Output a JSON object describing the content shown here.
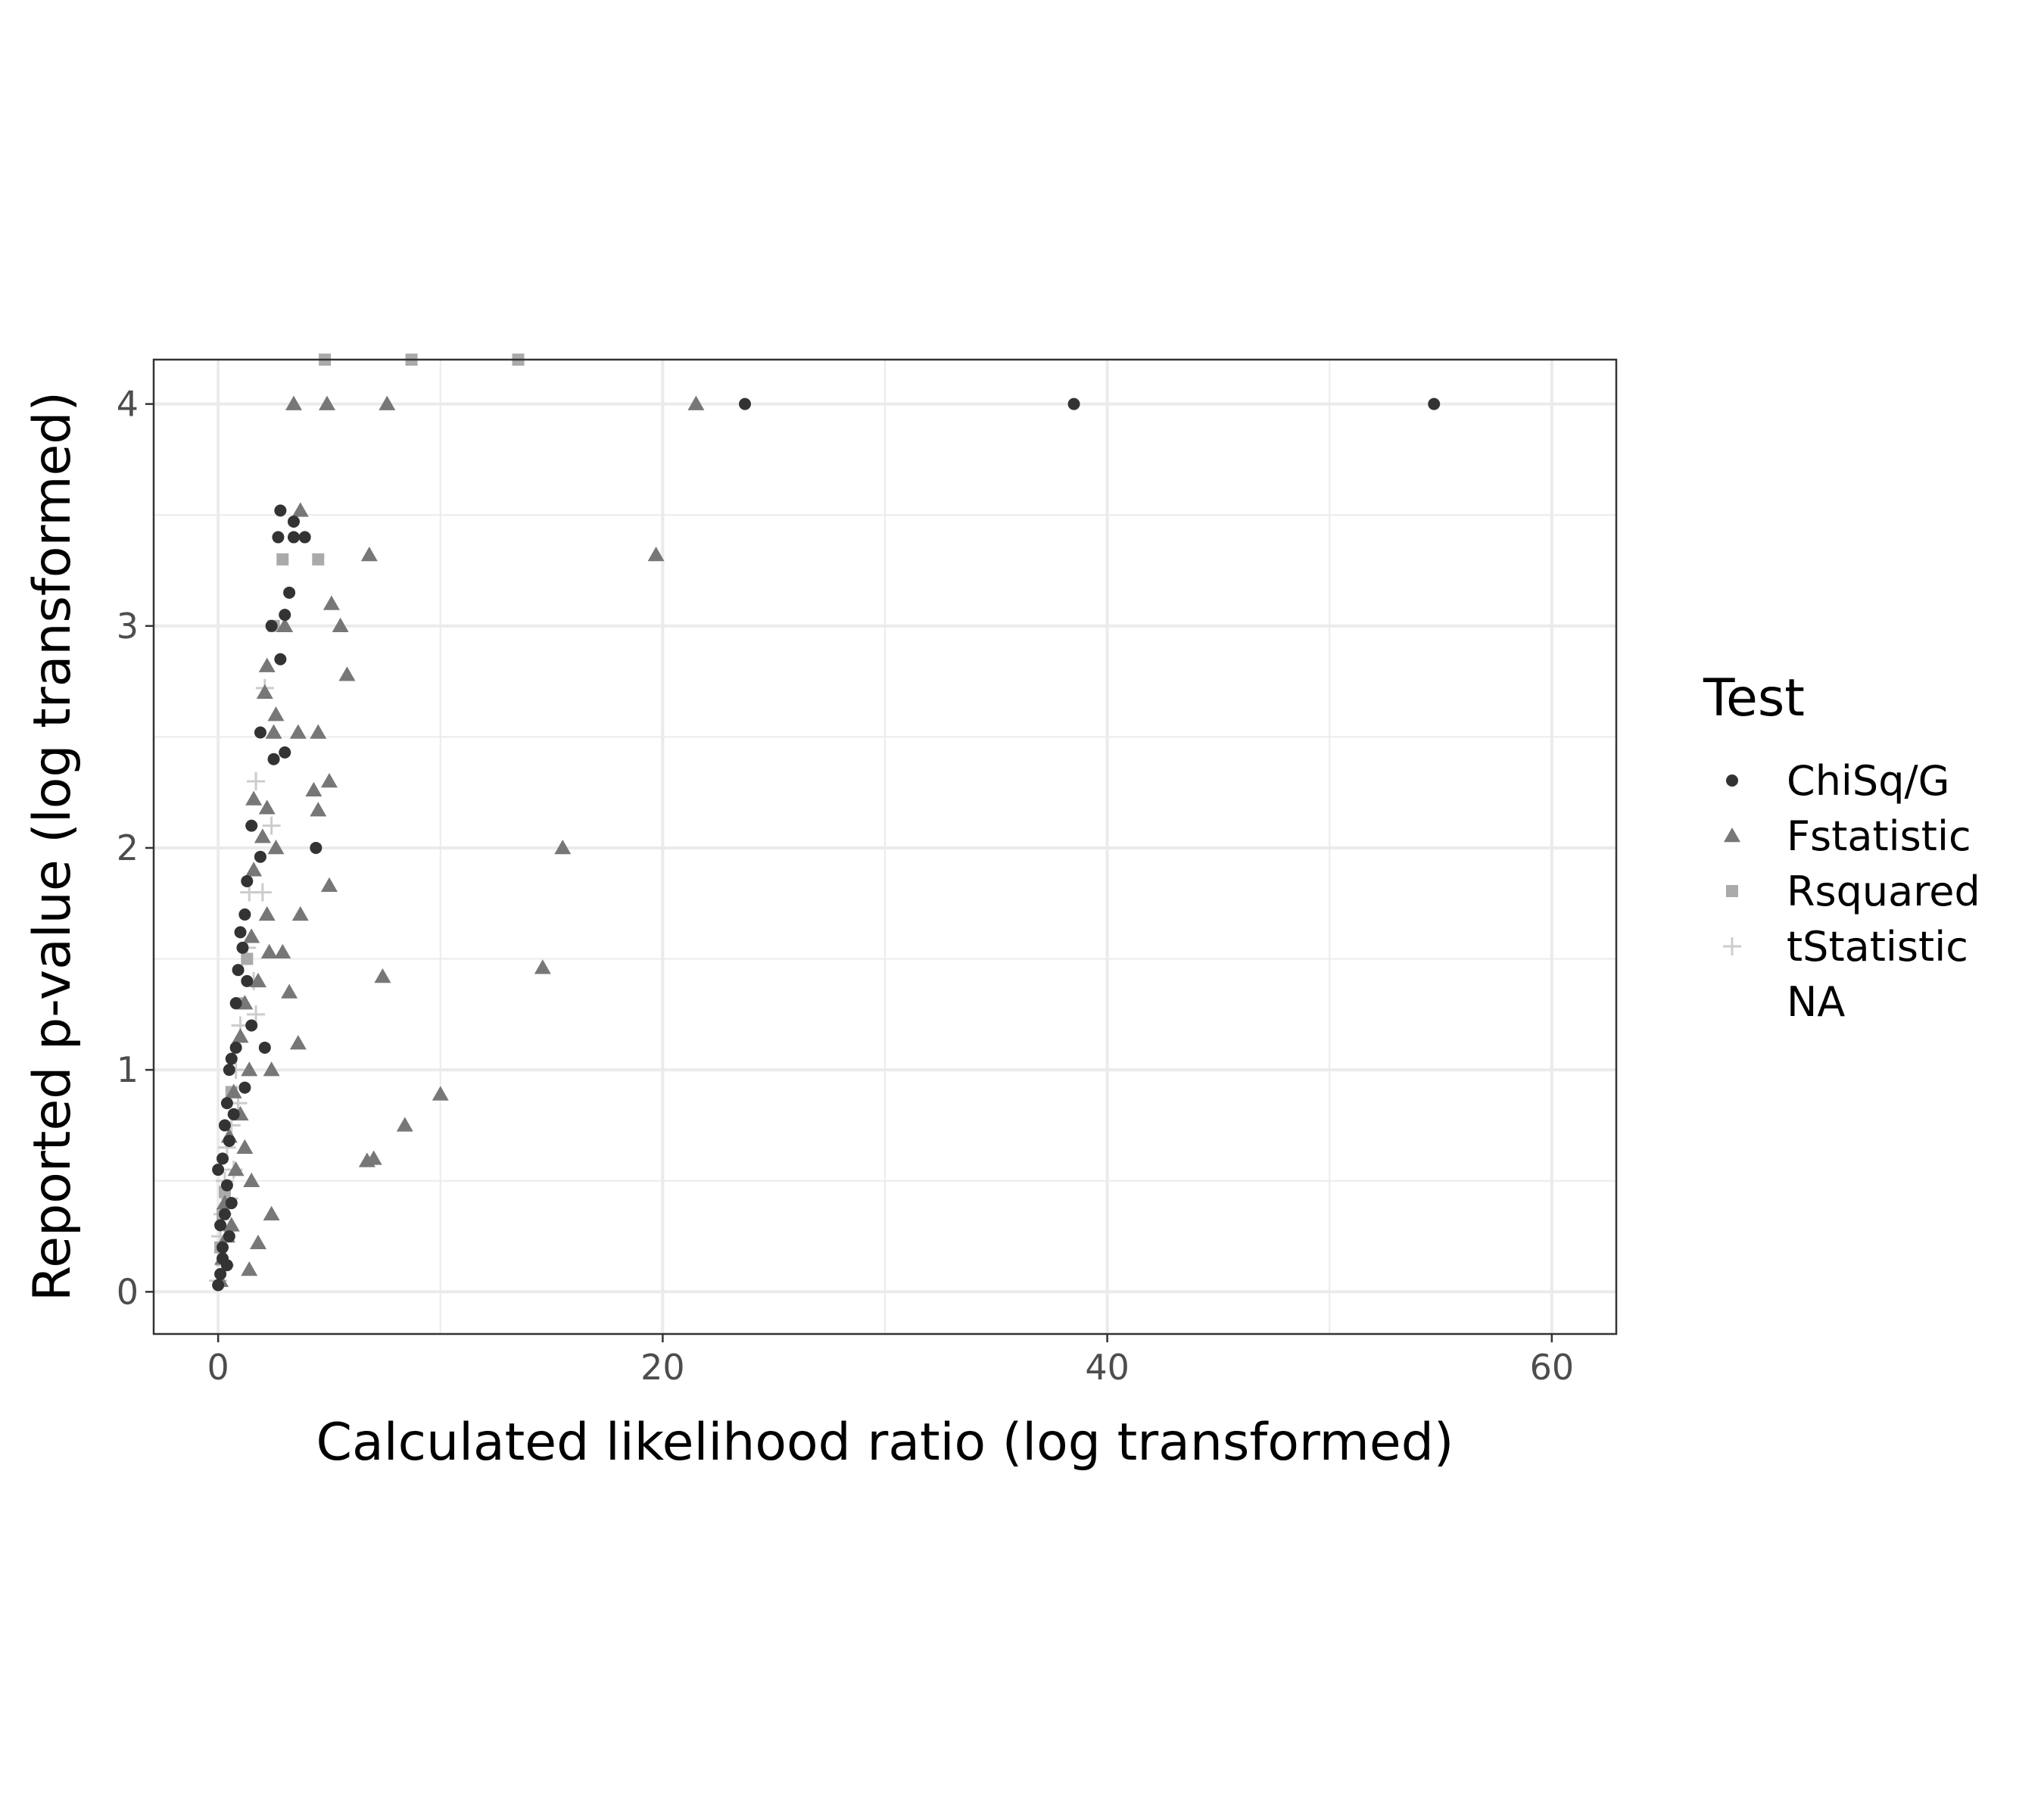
{
  "chart_data": {
    "type": "scatter",
    "xlabel": "Calculated likelihood ratio (log transformed)",
    "ylabel": "Reported p-value (log transformed)",
    "xlim": [
      -2.9,
      62.9
    ],
    "ylim": [
      -0.19,
      4.2
    ],
    "x_ticks": [
      0,
      20,
      40,
      60
    ],
    "y_ticks": [
      0,
      1,
      2,
      3,
      4
    ],
    "grid": true,
    "legend": {
      "title": "Test",
      "position": "right",
      "entries": [
        {
          "label": "ChiSq/G",
          "shape": "circle",
          "color": "#333333"
        },
        {
          "label": "Fstatistic",
          "shape": "triangle",
          "color": "#777777"
        },
        {
          "label": "Rsquared",
          "shape": "square",
          "color": "#aaaaaa"
        },
        {
          "label": "tStatistic",
          "shape": "plus",
          "color": "#cccccc"
        },
        {
          "label": "NA",
          "shape": "none",
          "color": "#ffffff"
        }
      ]
    },
    "series": [
      {
        "name": "ChiSq/G",
        "shape": "circle",
        "color": "#333333",
        "points": [
          [
            23.7,
            4.0
          ],
          [
            38.5,
            4.0
          ],
          [
            54.7,
            4.0
          ],
          [
            2.8,
            3.52
          ],
          [
            2.7,
            3.4
          ],
          [
            3.4,
            3.4
          ],
          [
            3.9,
            3.4
          ],
          [
            3.4,
            3.47
          ],
          [
            3.2,
            3.15
          ],
          [
            3.0,
            3.05
          ],
          [
            2.4,
            3.0
          ],
          [
            2.8,
            2.85
          ],
          [
            1.9,
            2.52
          ],
          [
            3.0,
            2.43
          ],
          [
            2.5,
            2.4
          ],
          [
            4.4,
            2.0
          ],
          [
            1.9,
            1.96
          ],
          [
            1.5,
            2.1
          ],
          [
            1.3,
            1.85
          ],
          [
            1.2,
            1.7
          ],
          [
            1.0,
            1.62
          ],
          [
            1.1,
            1.55
          ],
          [
            0.9,
            1.45
          ],
          [
            1.3,
            1.4
          ],
          [
            1.5,
            1.2
          ],
          [
            0.8,
            1.3
          ],
          [
            2.1,
            1.1
          ],
          [
            1.2,
            0.92
          ],
          [
            0.6,
            1.05
          ],
          [
            0.8,
            1.1
          ],
          [
            0.5,
            1.0
          ],
          [
            0.4,
            0.85
          ],
          [
            0.7,
            0.8
          ],
          [
            0.3,
            0.75
          ],
          [
            0.5,
            0.68
          ],
          [
            0.2,
            0.6
          ],
          [
            0.0,
            0.55
          ],
          [
            0.4,
            0.48
          ],
          [
            0.6,
            0.4
          ],
          [
            0.3,
            0.35
          ],
          [
            0.1,
            0.3
          ],
          [
            0.5,
            0.25
          ],
          [
            0.2,
            0.2
          ],
          [
            0.4,
            0.12
          ],
          [
            0.1,
            0.08
          ],
          [
            0.0,
            0.03
          ],
          [
            0.2,
            0.15
          ]
        ]
      },
      {
        "name": "Fstatistic",
        "shape": "triangle",
        "color": "#777777",
        "points": [
          [
            3.4,
            4.0
          ],
          [
            4.9,
            4.0
          ],
          [
            7.6,
            4.0
          ],
          [
            21.5,
            4.0
          ],
          [
            3.7,
            3.52
          ],
          [
            6.8,
            3.32
          ],
          [
            19.7,
            3.32
          ],
          [
            5.1,
            3.1
          ],
          [
            5.5,
            3.0
          ],
          [
            3.0,
            3.0
          ],
          [
            5.8,
            2.78
          ],
          [
            2.2,
            2.82
          ],
          [
            2.1,
            2.7
          ],
          [
            2.6,
            2.6
          ],
          [
            3.6,
            2.52
          ],
          [
            4.5,
            2.52
          ],
          [
            2.5,
            2.52
          ],
          [
            5.0,
            2.3
          ],
          [
            4.3,
            2.26
          ],
          [
            4.5,
            2.17
          ],
          [
            2.2,
            2.18
          ],
          [
            1.6,
            2.22
          ],
          [
            2.0,
            2.05
          ],
          [
            2.6,
            2.0
          ],
          [
            15.5,
            2.0
          ],
          [
            1.6,
            1.9
          ],
          [
            5.0,
            1.83
          ],
          [
            2.2,
            1.7
          ],
          [
            3.7,
            1.7
          ],
          [
            2.3,
            1.53
          ],
          [
            2.9,
            1.53
          ],
          [
            1.5,
            1.6
          ],
          [
            14.6,
            1.46
          ],
          [
            3.2,
            1.35
          ],
          [
            7.4,
            1.42
          ],
          [
            1.8,
            1.4
          ],
          [
            1.2,
            1.3
          ],
          [
            3.6,
            1.12
          ],
          [
            2.4,
            1.0
          ],
          [
            1.4,
            1.0
          ],
          [
            1.0,
            1.15
          ],
          [
            10.0,
            0.89
          ],
          [
            8.4,
            0.75
          ],
          [
            7.0,
            0.6
          ],
          [
            6.7,
            0.59
          ],
          [
            1.5,
            0.5
          ],
          [
            2.4,
            0.35
          ],
          [
            1.8,
            0.22
          ],
          [
            1.4,
            0.1
          ],
          [
            1.0,
            0.8
          ],
          [
            0.7,
            0.9
          ],
          [
            0.5,
            0.7
          ],
          [
            0.8,
            0.55
          ],
          [
            0.3,
            0.4
          ],
          [
            0.4,
            0.25
          ],
          [
            0.2,
            0.15
          ],
          [
            0.1,
            0.05
          ],
          [
            1.2,
            0.65
          ],
          [
            0.6,
            0.3
          ]
        ]
      },
      {
        "name": "Rsquared",
        "shape": "square",
        "color": "#aaaaaa",
        "points": [
          [
            4.8,
            4.2
          ],
          [
            8.7,
            4.2
          ],
          [
            13.5,
            4.2
          ],
          [
            2.9,
            3.3
          ],
          [
            4.5,
            3.3
          ],
          [
            2.5,
            3.0
          ],
          [
            1.3,
            1.5
          ],
          [
            1.0,
            1.3
          ],
          [
            0.6,
            0.9
          ],
          [
            0.3,
            0.45
          ],
          [
            0.2,
            0.35
          ],
          [
            0.1,
            0.2
          ]
        ]
      },
      {
        "name": "tStatistic",
        "shape": "plus",
        "color": "#cccccc",
        "points": [
          [
            1.7,
            2.3
          ],
          [
            2.1,
            2.72
          ],
          [
            2.4,
            2.1
          ],
          [
            1.4,
            1.8
          ],
          [
            2.0,
            1.8
          ],
          [
            1.6,
            1.4
          ],
          [
            1.3,
            1.55
          ],
          [
            1.7,
            1.25
          ],
          [
            1.0,
            1.2
          ],
          [
            0.8,
            1.0
          ],
          [
            0.9,
            0.85
          ],
          [
            0.6,
            0.75
          ],
          [
            0.4,
            0.65
          ],
          [
            0.7,
            0.55
          ],
          [
            0.3,
            0.5
          ],
          [
            0.5,
            0.42
          ],
          [
            0.2,
            0.35
          ],
          [
            0.1,
            0.25
          ],
          [
            0.3,
            0.12
          ],
          [
            0.0,
            0.05
          ]
        ]
      }
    ]
  }
}
